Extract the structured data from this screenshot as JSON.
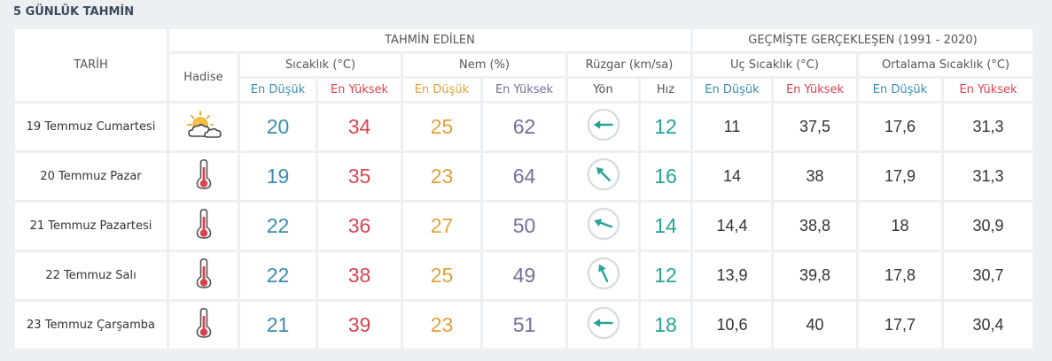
{
  "title": "5 GÜNLÜK TAHMİN",
  "header": {
    "tarih": "TARİH",
    "tahmin": "TAHMİN EDİLEN",
    "gecmis": "GEÇMİŞTE GERÇEKLEŞEN (1991 - 2020)",
    "hadise": "Hadise",
    "sicaklik": "Sıcaklık (°C)",
    "nem": "Nem (%)",
    "ruzgar": "Rüzgar (km/sa)",
    "uc": "Uç Sıcaklık (°C)",
    "ortalama": "Ortalama Sıcaklık (°C)",
    "en_dusuk": "En Düşük",
    "en_yuksek": "En Yüksek",
    "yon": "Yön",
    "hiz": "Hız"
  },
  "colors": {
    "low": "#3a8bb1",
    "high": "#d9434f",
    "humidity_low": "#e0a23a",
    "humidity_high": "#716f9a",
    "wind": "#27a394"
  },
  "rows": [
    {
      "date": "19 Temmuz Cumartesi",
      "icon": "partly-cloudy-icon",
      "t_min": "20",
      "t_max": "34",
      "h_min": "25",
      "h_max": "62",
      "wind_dir_deg": 270,
      "wind_speed": "12",
      "ext_min": "11",
      "ext_max": "37,5",
      "avg_min": "17,6",
      "avg_max": "31,3"
    },
    {
      "date": "20 Temmuz Pazar",
      "icon": "thermometer-icon",
      "t_min": "19",
      "t_max": "35",
      "h_min": "23",
      "h_max": "64",
      "wind_dir_deg": 315,
      "wind_speed": "16",
      "ext_min": "14",
      "ext_max": "38",
      "avg_min": "17,9",
      "avg_max": "31,3"
    },
    {
      "date": "21 Temmuz Pazartesi",
      "icon": "thermometer-icon",
      "t_min": "22",
      "t_max": "36",
      "h_min": "27",
      "h_max": "50",
      "wind_dir_deg": 290,
      "wind_speed": "14",
      "ext_min": "14,4",
      "ext_max": "38,8",
      "avg_min": "18",
      "avg_max": "30,9"
    },
    {
      "date": "22 Temmuz Salı",
      "icon": "thermometer-icon",
      "t_min": "22",
      "t_max": "38",
      "h_min": "25",
      "h_max": "49",
      "wind_dir_deg": 335,
      "wind_speed": "12",
      "ext_min": "13,9",
      "ext_max": "39,8",
      "avg_min": "17,8",
      "avg_max": "30,7"
    },
    {
      "date": "23 Temmuz Çarşamba",
      "icon": "thermometer-icon",
      "t_min": "21",
      "t_max": "39",
      "h_min": "23",
      "h_max": "51",
      "wind_dir_deg": 270,
      "wind_speed": "18",
      "ext_min": "10,6",
      "ext_max": "40",
      "avg_min": "17,7",
      "avg_max": "30,4"
    }
  ]
}
